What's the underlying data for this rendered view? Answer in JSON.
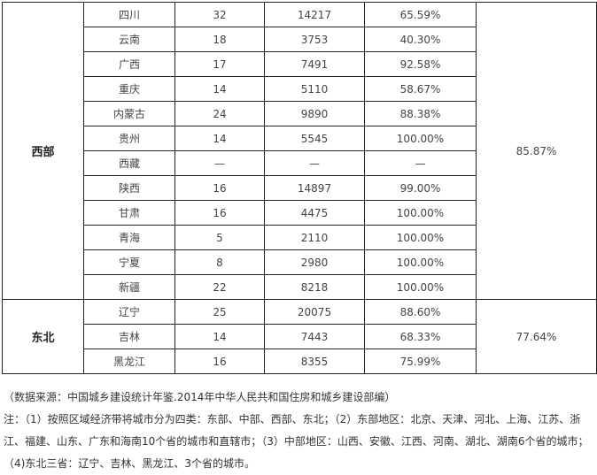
{
  "regions": [
    {
      "name": "西部",
      "overall": "85.87%",
      "rows": [
        [
          "四川",
          "32",
          "14217",
          "65.59%"
        ],
        [
          "云南",
          "18",
          "3753",
          "40.30%"
        ],
        [
          "广西",
          "17",
          "7491",
          "92.58%"
        ],
        [
          "重庆",
          "14",
          "5110",
          "58.67%"
        ],
        [
          "内蒙古",
          "24",
          "9890",
          "88.38%"
        ],
        [
          "贵州",
          "14",
          "5545",
          "100.00%"
        ],
        [
          "西藏",
          "—",
          "—",
          "—"
        ],
        [
          "陕西",
          "16",
          "14897",
          "99.00%"
        ],
        [
          "甘肃",
          "16",
          "4475",
          "100.00%"
        ],
        [
          "青海",
          "5",
          "2110",
          "100.00%"
        ],
        [
          "宁夏",
          "8",
          "2980",
          "100.00%"
        ],
        [
          "新疆",
          "22",
          "8218",
          "100.00%"
        ]
      ]
    },
    {
      "name": "东北",
      "overall": "77.64%",
      "rows": [
        [
          "辽宁",
          "25",
          "20075",
          "88.60%"
        ],
        [
          "吉林",
          "14",
          "7443",
          "68.33%"
        ],
        [
          "黑龙江",
          "16",
          "8355",
          "75.99%"
        ]
      ]
    }
  ],
  "notes": [
    "（数据来源：中国城乡建设统计年鉴.2014年中华人民共和国住房和城乡建设部编）",
    "注：（1）按照区域经济带将城市分为四类：东部、中部、西部、东北；（2）东部地区：北京、天津、河北、上海、江苏、浙江、福建、山东、广东和海南10个省的城市和直辖市；（3）中部地区：山西、安徽、江西、河南、湖北、湖南6个省的城市；（4)东北三省：辽宁、吉林、黑龙江、3个省的城市。"
  ]
}
